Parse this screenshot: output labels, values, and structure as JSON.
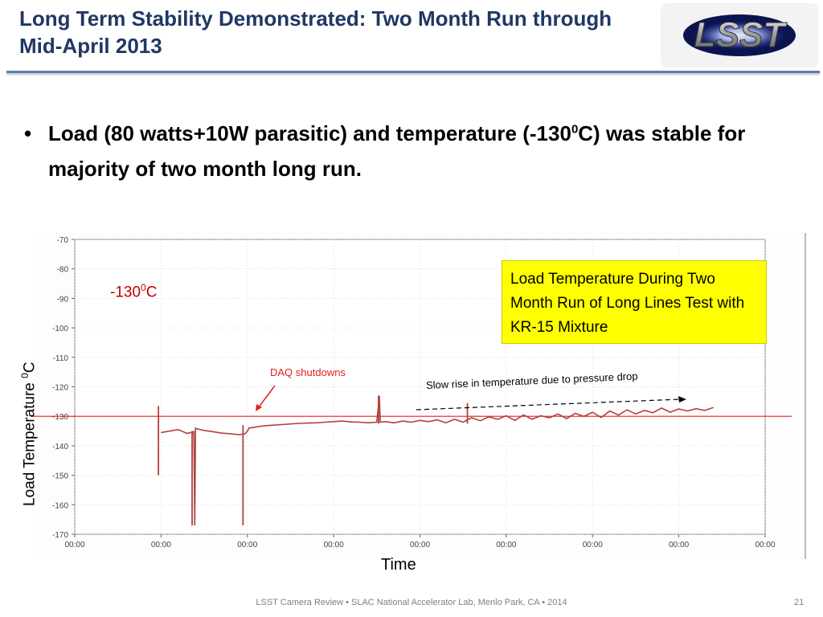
{
  "slide": {
    "title": "Long Term Stability Demonstrated:  Two Month Run through Mid-April 2013",
    "logo_text": "LSST",
    "bullet_marker": "•",
    "bullet_part1": "Load (80 watts+10W parasitic) and temperature (-130",
    "bullet_sup": "0",
    "bullet_part2": "C) was stable for majority of two month long run.",
    "footer": "LSST Camera Review • SLAC National Accelerator Lab, Menlo Park, CA • 2014",
    "page_number": "21"
  },
  "colors": {
    "title": "#1f3864",
    "trace": "#b04040",
    "reference_line": "#e02020",
    "callout_bg": "#ffff00"
  },
  "annotations": {
    "reference_label_main": "-130",
    "reference_label_sup": "0",
    "reference_label_unit": "C",
    "daq": "DAQ shutdowns",
    "rise": "Slow rise in temperature due to pressure drop",
    "callout": "Load Temperature During Two Month Run of Long Lines Test with KR-15 Mixture"
  },
  "chart_data": {
    "type": "line",
    "title": "",
    "xlabel": "Time",
    "ylabel_main": "Load Temperature ",
    "ylabel_sup": "0",
    "ylabel_unit": "C",
    "ylim": [
      -170,
      -70
    ],
    "yticks": [
      -70,
      -80,
      -90,
      -100,
      -110,
      -120,
      -130,
      -140,
      -150,
      -160,
      -170
    ],
    "xlim": [
      0,
      8
    ],
    "xticks": [
      0,
      1,
      2,
      3,
      4,
      5,
      6,
      7,
      8
    ],
    "xtick_labels": [
      "00:00",
      "00:00",
      "00:00",
      "00:00",
      "00:00",
      "00:00",
      "00:00",
      "00:00",
      "00:00"
    ],
    "grid": true,
    "reference_line": -130,
    "series": [
      {
        "x": [
          1.0,
          1.1,
          1.2,
          1.3,
          1.38,
          1.39,
          1.4,
          1.41,
          1.5,
          1.6,
          1.7,
          1.8,
          1.9,
          1.97,
          2.0,
          2.02,
          2.1,
          2.2,
          2.3,
          2.4,
          2.5,
          2.6,
          2.7,
          2.8,
          2.9,
          3.0,
          3.1,
          3.2,
          3.3,
          3.4,
          3.5,
          3.53,
          3.54,
          3.6,
          3.7,
          3.8,
          3.9,
          4.0,
          4.1,
          4.2,
          4.3,
          4.4,
          4.5,
          4.6,
          4.7,
          4.8,
          4.9,
          5.0,
          5.1,
          5.2,
          5.3,
          5.4,
          5.5,
          5.6,
          5.7,
          5.8,
          5.9,
          6.0,
          6.1,
          6.2,
          6.3,
          6.4,
          6.5,
          6.6,
          6.7,
          6.8,
          6.9,
          7.0,
          7.1,
          7.2,
          7.3,
          7.4
        ],
        "y": [
          -135.5,
          -135.0,
          -134.5,
          -135.8,
          -135.2,
          -167.0,
          -134.0,
          -134.2,
          -134.8,
          -135.2,
          -135.7,
          -135.9,
          -136.2,
          -136.0,
          -135.0,
          -134.0,
          -133.6,
          -133.2,
          -133.0,
          -132.8,
          -132.6,
          -132.4,
          -132.3,
          -132.2,
          -132.0,
          -131.8,
          -131.6,
          -131.9,
          -132.0,
          -132.2,
          -132.0,
          -123.0,
          -132.0,
          -131.8,
          -132.2,
          -131.6,
          -132.0,
          -131.4,
          -131.8,
          -131.2,
          -132.2,
          -131.0,
          -132.0,
          -130.5,
          -131.5,
          -130.2,
          -131.0,
          -129.8,
          -131.4,
          -129.5,
          -131.0,
          -129.8,
          -130.5,
          -129.2,
          -130.8,
          -129.0,
          -130.0,
          -128.6,
          -130.4,
          -128.2,
          -129.6,
          -127.8,
          -129.2,
          -128.0,
          -128.8,
          -127.2,
          -128.6,
          -127.5,
          -128.2,
          -127.4,
          -128.0,
          -127.0
        ]
      }
    ],
    "spikes": [
      {
        "x": 0.97,
        "y_top": -126.5,
        "y_bottom": -150.0
      },
      {
        "x": 1.36,
        "y_top": -135.0,
        "y_bottom": -167.0
      },
      {
        "x": 1.95,
        "y_top": -133.0,
        "y_bottom": -167.0
      },
      {
        "x": 3.52,
        "y_top": -123.0,
        "y_bottom": -132.5
      },
      {
        "x": 4.55,
        "y_top": -125.5,
        "y_bottom": -132.5
      }
    ]
  }
}
